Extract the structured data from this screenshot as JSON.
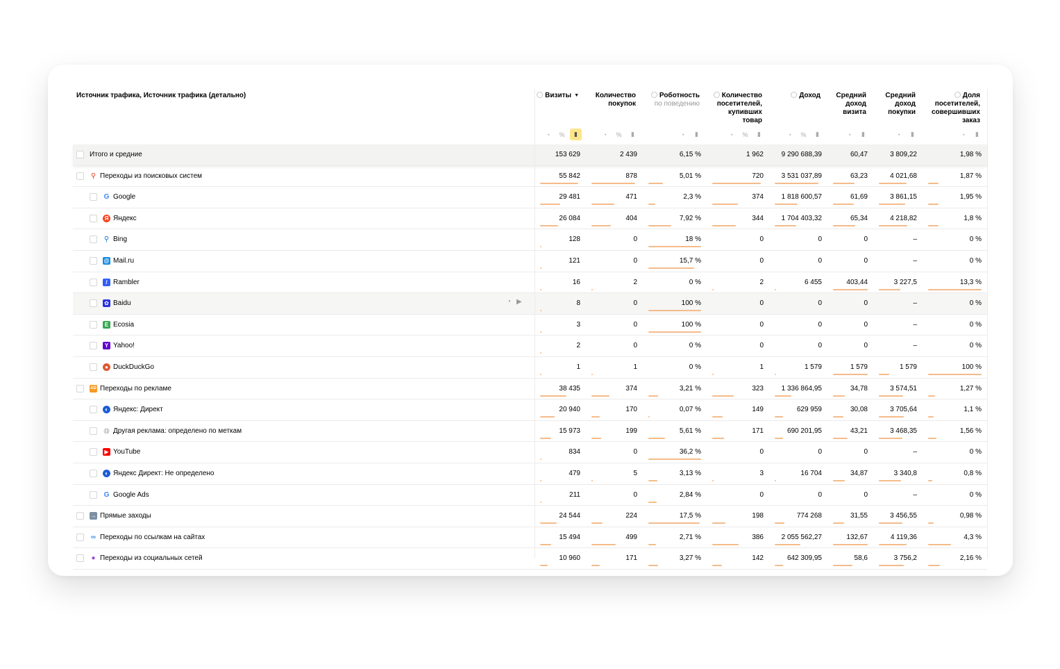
{
  "table": {
    "dimension_title": "Источник трафика, Источник трафика (детально)",
    "metrics": [
      {
        "key": "visits",
        "title": [
          "Визиты"
        ],
        "sub": "",
        "help": true,
        "sort": "▼",
        "controls": [
          "pie",
          "pct",
          "bars"
        ],
        "active": "bars"
      },
      {
        "key": "purchases",
        "title": [
          "Количество",
          "покупок"
        ],
        "sub": "",
        "help": false,
        "sort": "",
        "controls": [
          "pie",
          "pct",
          "bars"
        ],
        "active": ""
      },
      {
        "key": "robot",
        "title": [
          "Роботность"
        ],
        "sub": "по поведению",
        "help": true,
        "sort": "",
        "controls": [
          "pie",
          "bars"
        ],
        "active": ""
      },
      {
        "key": "buyers",
        "title": [
          "Количество",
          "посетителей,",
          "купивших",
          "товар"
        ],
        "sub": "",
        "help": true,
        "sort": "",
        "controls": [
          "pie",
          "pct",
          "bars"
        ],
        "active": ""
      },
      {
        "key": "revenue",
        "title": [
          "Доход"
        ],
        "sub": "",
        "help": true,
        "sort": "",
        "controls": [
          "pie",
          "pct",
          "bars"
        ],
        "active": ""
      },
      {
        "key": "avg_visit",
        "title": [
          "Средний",
          "доход",
          "визита"
        ],
        "sub": "",
        "help": false,
        "sort": "",
        "controls": [
          "pie",
          "bars"
        ],
        "active": ""
      },
      {
        "key": "avg_purchase",
        "title": [
          "Средний",
          "доход",
          "покупки"
        ],
        "sub": "",
        "help": false,
        "sort": "",
        "controls": [
          "pie",
          "bars"
        ],
        "active": ""
      },
      {
        "key": "share",
        "title": [
          "Доля",
          "посетителей,",
          "совершивших",
          "заказ"
        ],
        "sub": "",
        "help": true,
        "sort": "",
        "controls": [
          "pie",
          "bars"
        ],
        "active": ""
      }
    ],
    "rows": [
      {
        "label": "Итого и средние",
        "level": 0,
        "icon": "",
        "icon_color": "",
        "total": true,
        "values": [
          "153 629",
          "2 439",
          "6,15 %",
          "1 962",
          "9 290 688,39",
          "60,47",
          "3 809,22",
          "1,98 %"
        ],
        "bars": [
          0,
          0,
          0,
          0,
          0,
          0,
          0,
          0
        ]
      },
      {
        "label": "Переходы из поисковых систем",
        "level": 1,
        "icon": "search-icon",
        "icon_color": "#e8452e",
        "values": [
          "55 842",
          "878",
          "5,01 %",
          "720",
          "3 531 037,89",
          "63,23",
          "4 021,68",
          "1,87 %"
        ],
        "bars": [
          0.95,
          0.95,
          0.28,
          0.95,
          0.92,
          0.62,
          0.72,
          0.2
        ]
      },
      {
        "label": "Google",
        "level": 2,
        "icon": "google-icon",
        "icon_color": "#4285f4",
        "values": [
          "29 481",
          "471",
          "2,3 %",
          "374",
          "1 818 600,57",
          "61,69",
          "3 861,15",
          "1,95 %"
        ],
        "bars": [
          0.5,
          0.5,
          0.13,
          0.5,
          0.48,
          0.6,
          0.69,
          0.2
        ]
      },
      {
        "label": "Яндекс",
        "level": 2,
        "icon": "yandex-icon",
        "icon_color": "#fc3f1d",
        "values": [
          "26 084",
          "404",
          "7,92 %",
          "344",
          "1 704 403,32",
          "65,34",
          "4 218,82",
          "1,8 %"
        ],
        "bars": [
          0.45,
          0.43,
          0.44,
          0.46,
          0.45,
          0.64,
          0.75,
          0.19
        ]
      },
      {
        "label": "Bing",
        "level": 2,
        "icon": "bing-search-icon",
        "icon_color": "#1a73c8",
        "values": [
          "128",
          "0",
          "18 %",
          "0",
          "0",
          "0",
          "–",
          "0 %"
        ],
        "bars": [
          0.02,
          0,
          1.0,
          0,
          0,
          0,
          0,
          0
        ]
      },
      {
        "label": "Mail.ru",
        "level": 2,
        "icon": "mailru-icon",
        "icon_color": "#168de2",
        "values": [
          "121",
          "0",
          "15,7 %",
          "0",
          "0",
          "0",
          "–",
          "0 %"
        ],
        "bars": [
          0.02,
          0,
          0.87,
          0,
          0,
          0,
          0,
          0
        ]
      },
      {
        "label": "Rambler",
        "level": 2,
        "icon": "rambler-icon",
        "icon_color": "#315efb",
        "values": [
          "16",
          "2",
          "0 %",
          "2",
          "6 455",
          "403,44",
          "3 227,5",
          "13,3 %"
        ],
        "bars": [
          0.01,
          0.01,
          0,
          0.01,
          0.01,
          1.0,
          0.57,
          1.0
        ]
      },
      {
        "label": "Baidu",
        "level": 2,
        "icon": "baidu-icon",
        "icon_color": "#2932e1",
        "hover": true,
        "values": [
          "8",
          "0",
          "100 %",
          "0",
          "0",
          "0",
          "–",
          "0 %"
        ],
        "bars": [
          0.005,
          0,
          1.0,
          0,
          0,
          0,
          0,
          0
        ]
      },
      {
        "label": "Ecosia",
        "level": 2,
        "icon": "ecosia-icon",
        "icon_color": "#36a852",
        "values": [
          "3",
          "0",
          "100 %",
          "0",
          "0",
          "0",
          "–",
          "0 %"
        ],
        "bars": [
          0.003,
          0,
          1.0,
          0,
          0,
          0,
          0,
          0
        ]
      },
      {
        "label": "Yahoo!",
        "level": 2,
        "icon": "yahoo-icon",
        "icon_color": "#6001d2",
        "values": [
          "2",
          "0",
          "0 %",
          "0",
          "0",
          "0",
          "–",
          "0 %"
        ],
        "bars": [
          0.002,
          0,
          0,
          0,
          0,
          0,
          0,
          0
        ]
      },
      {
        "label": "DuckDuckGo",
        "level": 2,
        "icon": "duckduckgo-icon",
        "icon_color": "#de5833",
        "values": [
          "1",
          "1",
          "0 %",
          "1",
          "1 579",
          "1 579",
          "1 579",
          "100 %"
        ],
        "bars": [
          0.002,
          0.002,
          0,
          0.002,
          0.001,
          1.0,
          0.28,
          1.0
        ]
      },
      {
        "label": "Переходы по рекламе",
        "level": 1,
        "icon": "ad-icon",
        "icon_color": "#f59a23",
        "values": [
          "38 435",
          "374",
          "3,21 %",
          "323",
          "1 336 864,95",
          "34,78",
          "3 574,51",
          "1,27 %"
        ],
        "bars": [
          0.65,
          0.4,
          0.18,
          0.42,
          0.35,
          0.34,
          0.63,
          0.13
        ]
      },
      {
        "label": "Яндекс: Директ",
        "level": 2,
        "icon": "yandex-direct-icon",
        "icon_color": "#1e5bd7",
        "values": [
          "20 940",
          "170",
          "0,07 %",
          "149",
          "629 959",
          "30,08",
          "3 705,64",
          "1,1 %"
        ],
        "bars": [
          0.36,
          0.18,
          0.01,
          0.2,
          0.17,
          0.3,
          0.66,
          0.11
        ]
      },
      {
        "label": "Другая реклама: определено по меткам",
        "level": 2,
        "icon": "globe-icon",
        "icon_color": "#aaaaaa",
        "values": [
          "15 973",
          "199",
          "5,61 %",
          "171",
          "690 201,95",
          "43,21",
          "3 468,35",
          "1,56 %"
        ],
        "bars": [
          0.27,
          0.21,
          0.31,
          0.23,
          0.18,
          0.42,
          0.61,
          0.16
        ]
      },
      {
        "label": "YouTube",
        "level": 2,
        "icon": "youtube-icon",
        "icon_color": "#ff0000",
        "values": [
          "834",
          "0",
          "36,2 %",
          "0",
          "0",
          "0",
          "–",
          "0 %"
        ],
        "bars": [
          0.015,
          0,
          1.0,
          0,
          0,
          0,
          0,
          0
        ]
      },
      {
        "label": "Яндекс Директ: Не определено",
        "level": 2,
        "icon": "yandex-direct-icon",
        "icon_color": "#1e5bd7",
        "values": [
          "479",
          "5",
          "3,13 %",
          "3",
          "16 704",
          "34,87",
          "3 340,8",
          "0,8 %"
        ],
        "bars": [
          0.01,
          0.01,
          0.17,
          0.01,
          0.005,
          0.34,
          0.59,
          0.08
        ]
      },
      {
        "label": "Google Ads",
        "level": 2,
        "icon": "google-ads-icon",
        "icon_color": "#4285f4",
        "values": [
          "211",
          "0",
          "2,84 %",
          "0",
          "0",
          "0",
          "–",
          "0 %"
        ],
        "bars": [
          0.004,
          0,
          0.16,
          0,
          0,
          0,
          0,
          0
        ]
      },
      {
        "label": "Прямые заходы",
        "level": 1,
        "icon": "direct-entry-icon",
        "icon_color": "#7d8fa3",
        "values": [
          "24 544",
          "224",
          "17,5 %",
          "198",
          "774 268",
          "31,55",
          "3 456,55",
          "0,98 %"
        ],
        "bars": [
          0.42,
          0.24,
          0.97,
          0.26,
          0.21,
          0.31,
          0.61,
          0.1
        ]
      },
      {
        "label": "Переходы по ссылкам на сайтах",
        "level": 1,
        "icon": "link-icon",
        "icon_color": "#3b8de0",
        "values": [
          "15 494",
          "499",
          "2,71 %",
          "386",
          "2 055 562,27",
          "132,67",
          "4 119,36",
          "4,3 %"
        ],
        "bars": [
          0.27,
          0.53,
          0.15,
          0.52,
          0.55,
          1.0,
          0.73,
          0.43
        ]
      },
      {
        "label": "Переходы из социальных сетей",
        "level": 1,
        "icon": "social-icon",
        "icon_color": "#9a4fd6",
        "values": [
          "10 960",
          "171",
          "3,27 %",
          "142",
          "642 309,95",
          "58,6",
          "3 756,2",
          "2,16 %"
        ],
        "bars": [
          0.19,
          0.18,
          0.18,
          0.19,
          0.17,
          0.57,
          0.66,
          0.22
        ]
      }
    ]
  }
}
